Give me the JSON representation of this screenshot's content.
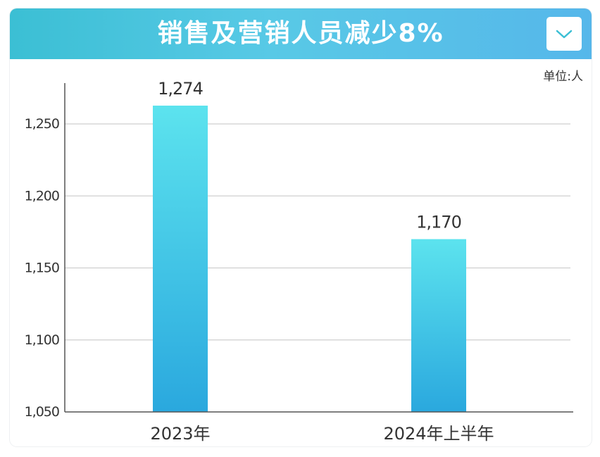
{
  "header": {
    "title": "销售及营销人员减少8%",
    "dropdown_icon": "chevron-down-icon"
  },
  "unit_label": "单位:人",
  "colors": {
    "header_start": "#3bbfd4",
    "header_end": "#56b7ea",
    "bar_top": "#5ce3ee",
    "bar_bottom": "#2aa8de",
    "axis": "#555555",
    "grid": "#cfcfcf",
    "text": "#333333"
  },
  "chart_data": {
    "type": "bar",
    "categories": [
      "2023年",
      "2024年上半年"
    ],
    "values": [
      1274,
      1170
    ],
    "value_labels": [
      "1,274",
      "1,170"
    ],
    "title": "销售及营销人员减少8%",
    "xlabel": "",
    "ylabel": "",
    "ylim": [
      1050,
      1274
    ],
    "yticks": [
      1050,
      1100,
      1150,
      1200,
      1250
    ],
    "ytick_labels": [
      "1,050",
      "1,100",
      "1,150",
      "1,200",
      "1,250"
    ],
    "grid": true,
    "legend": "none"
  }
}
